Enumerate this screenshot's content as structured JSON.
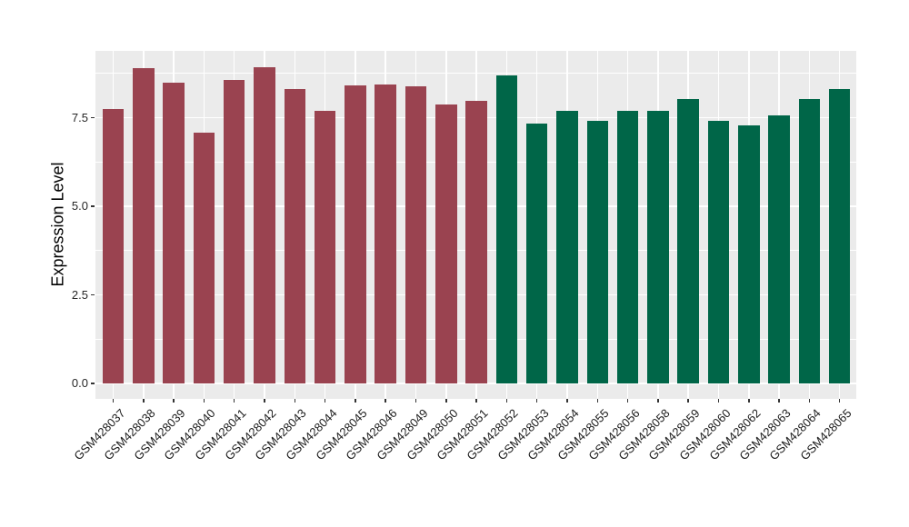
{
  "figure": {
    "background": "#FFFFFF",
    "panel_background": "#EBEBEB",
    "grid_color": "#FFFFFF",
    "tick_mark_color": "#333333",
    "tick_label_color": "#262626"
  },
  "chart_data": {
    "type": "bar",
    "title": "",
    "xlabel": "",
    "ylabel": "Expression Level",
    "ylim": [
      -0.45,
      9.38
    ],
    "ytick_values": [
      0,
      2.5,
      5,
      7.5
    ],
    "ytick_labels": [
      "0.0",
      "2.5",
      "5.0",
      "7.5"
    ],
    "yminor_values": [
      1.25,
      3.75,
      6.25,
      8.75
    ],
    "grid": "on",
    "legend": "none",
    "categories": [
      "GSM428037",
      "GSM428038",
      "GSM428039",
      "GSM428040",
      "GSM428041",
      "GSM428042",
      "GSM428043",
      "GSM428044",
      "GSM428045",
      "GSM428046",
      "GSM428049",
      "GSM428050",
      "GSM428051",
      "GSM428052",
      "GSM428053",
      "GSM428054",
      "GSM428055",
      "GSM428056",
      "GSM428058",
      "GSM428059",
      "GSM428060",
      "GSM428062",
      "GSM428063",
      "GSM428064",
      "GSM428065"
    ],
    "values": [
      7.75,
      8.9,
      8.5,
      7.08,
      8.57,
      8.92,
      8.32,
      7.68,
      8.4,
      8.44,
      8.38,
      7.88,
      7.98,
      8.68,
      7.34,
      7.7,
      7.42,
      7.68,
      7.68,
      8.03,
      7.42,
      7.28,
      7.57,
      8.03,
      8.3
    ],
    "bar_colors": [
      "#9A4350",
      "#9A4350",
      "#9A4350",
      "#9A4350",
      "#9A4350",
      "#9A4350",
      "#9A4350",
      "#9A4350",
      "#9A4350",
      "#9A4350",
      "#9A4350",
      "#9A4350",
      "#9A4350",
      "#006648",
      "#006648",
      "#006648",
      "#006648",
      "#006648",
      "#006648",
      "#006648",
      "#006648",
      "#006648",
      "#006648",
      "#006648",
      "#006648"
    ]
  }
}
